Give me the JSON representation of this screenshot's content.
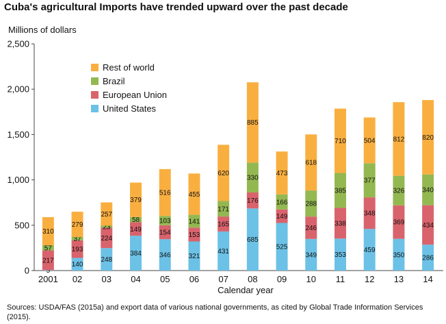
{
  "title": "Cuba's agricultural Imports have trended upward over the past decade",
  "footnote": "Sources: USDA/FAS (2015a) and export data of various national governments, as cited by Global Trade Information Services (2015).",
  "chart_data": {
    "type": "bar",
    "stacked": true,
    "ylabel": "Millions of dollars",
    "xlabel": "Calendar year",
    "ylim": [
      0,
      2500
    ],
    "yticks": [
      0,
      500,
      1000,
      1500,
      2000,
      2500
    ],
    "ytick_labels": [
      "0",
      "500",
      "1,000",
      "1,500",
      "2,000",
      "2,500"
    ],
    "grid": false,
    "legend_position": "top-left",
    "categories": [
      "2001",
      "02",
      "03",
      "04",
      "05",
      "06",
      "07",
      "08",
      "09",
      "10",
      "11",
      "12",
      "13",
      "14"
    ],
    "series": [
      {
        "name": "United States",
        "color": "#6cc1e6",
        "values": [
          5,
          140,
          248,
          384,
          346,
          321,
          431,
          685,
          525,
          349,
          353,
          459,
          350,
          286
        ]
      },
      {
        "name": "European Union",
        "color": "#d9636c",
        "values": [
          217,
          193,
          224,
          149,
          154,
          153,
          165,
          176,
          149,
          246,
          338,
          348,
          369,
          434
        ]
      },
      {
        "name": "Brazil",
        "color": "#94b851",
        "values": [
          57,
          37,
          23,
          58,
          103,
          141,
          171,
          330,
          166,
          288,
          385,
          377,
          326,
          340
        ]
      },
      {
        "name": "Rest of world",
        "color": "#f9af40",
        "values": [
          310,
          279,
          257,
          379,
          516,
          455,
          620,
          885,
          473,
          618,
          710,
          504,
          812,
          820
        ]
      }
    ],
    "legend_order": [
      "Rest of world",
      "Brazil",
      "European Union",
      "United States"
    ]
  }
}
